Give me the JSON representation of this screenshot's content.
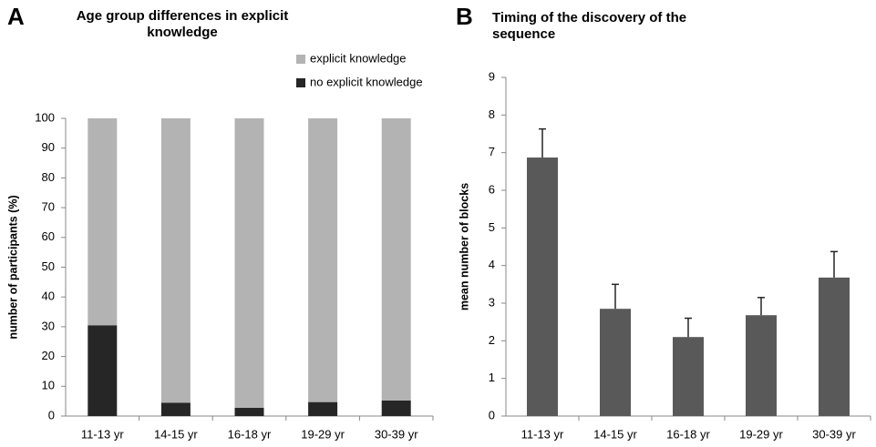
{
  "chart_data": [
    {
      "type": "stacked_bar",
      "panel": "A",
      "title": "Age group differences in explicit knowledge",
      "ylabel": "number of participants (%)",
      "categories": [
        "11-13 yr",
        "14-15 yr",
        "16-18 yr",
        "19-29 yr",
        "30-39 yr"
      ],
      "series": [
        {
          "name": "no explicit knowledge",
          "color": "#262626",
          "values": [
            30.5,
            4.5,
            2.8,
            4.7,
            5.2
          ]
        },
        {
          "name": "explicit knowledge",
          "color": "#b3b3b3",
          "values": [
            69.5,
            95.5,
            97.2,
            95.3,
            94.8
          ]
        }
      ],
      "ylim": [
        0,
        100
      ],
      "yticks": [
        0,
        10,
        20,
        30,
        40,
        50,
        60,
        70,
        80,
        90,
        100
      ],
      "legend": "top-right"
    },
    {
      "type": "bar",
      "panel": "B",
      "title": "Timing of the discovery of the sequence",
      "ylabel": "mean number of blocks",
      "categories": [
        "11-13 yr",
        "14-15 yr",
        "16-18 yr",
        "19-29 yr",
        "30-39 yr"
      ],
      "values": [
        6.87,
        2.85,
        2.1,
        2.68,
        3.68
      ],
      "errors": [
        0.76,
        0.65,
        0.5,
        0.47,
        0.69
      ],
      "color": "#595959",
      "ylim": [
        0,
        9
      ],
      "yticks": [
        0,
        1,
        2,
        3,
        4,
        5,
        6,
        7,
        8,
        9
      ]
    }
  ]
}
